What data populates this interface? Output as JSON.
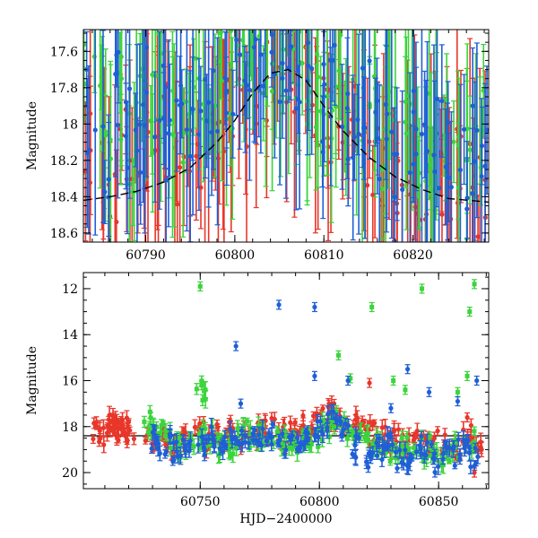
{
  "chart_data": [
    {
      "type": "scatter",
      "title": "",
      "xlabel": "",
      "ylabel": "Magnitude",
      "xlim": [
        60783,
        60828.5
      ],
      "ylim": [
        18.65,
        17.48
      ],
      "y_inverted": true,
      "grid": false,
      "xticks": [
        "60790",
        "60800",
        "60810",
        "60820"
      ],
      "yticks": [
        "17.6",
        "17.8",
        "18",
        "18.2",
        "18.4",
        "18.6"
      ],
      "series": [
        {
          "color": "#e8362a",
          "marker": "circle",
          "errorbars": true,
          "x": [
            60783.6,
            60785.0,
            60786.3,
            60787.4,
            60788.6,
            60789.9,
            60791.2,
            60792.3,
            60793.5,
            60794.8,
            60796.2,
            60797.3,
            60798.6,
            60799.8,
            60801.0,
            60802.3,
            60803.4,
            60804.6,
            60805.8,
            60807.1,
            60808.4,
            60809.5,
            60810.7,
            60811.9,
            60813.2,
            60814.4,
            60815.6,
            60816.8,
            60818.0,
            60819.3,
            60820.5,
            60821.7,
            60822.9,
            60824.1,
            60825.3,
            60826.6,
            60827.8
          ],
          "y": [
            18.05,
            18.25,
            18.35,
            18.1,
            18.3,
            18.15,
            18.2,
            18.05,
            18.25,
            18.15,
            18.1,
            18.0,
            17.95,
            17.9,
            17.85,
            17.8,
            17.75,
            17.72,
            17.7,
            17.72,
            17.78,
            17.85,
            17.95,
            18.0,
            18.05,
            18.1,
            18.15,
            18.2,
            18.22,
            18.25,
            18.28,
            18.3,
            18.32,
            18.3,
            18.28,
            18.32,
            18.35
          ]
        },
        {
          "color": "#3cd43c",
          "marker": "circle",
          "errorbars": true,
          "x": [
            60783.3,
            60784.6,
            60785.8,
            60787.0,
            60788.2,
            60789.5,
            60790.7,
            60791.9,
            60793.1,
            60794.4,
            60795.6,
            60796.9,
            60798.1,
            60799.3,
            60800.6,
            60801.8,
            60803.0,
            60804.2,
            60805.5,
            60806.7,
            60807.9,
            60809.2,
            60810.4,
            60811.6,
            60812.8,
            60814.1,
            60815.3,
            60816.5,
            60817.7,
            60819.0,
            60820.2,
            60821.4,
            60822.6,
            60823.9,
            60825.1,
            60826.3,
            60827.5
          ],
          "y": [
            17.8,
            17.9,
            18.1,
            17.85,
            18.2,
            17.95,
            18.0,
            17.7,
            17.85,
            18.05,
            17.9,
            17.8,
            17.7,
            17.75,
            17.65,
            17.6,
            17.65,
            17.55,
            17.6,
            17.7,
            17.75,
            17.8,
            17.85,
            17.75,
            18.0,
            17.9,
            17.95,
            18.1,
            18.05,
            18.0,
            18.15,
            18.1,
            18.2,
            18.05,
            18.25,
            18.15,
            18.0
          ]
        },
        {
          "color": "#1f5fd6",
          "marker": "circle",
          "errorbars": true,
          "x": [
            60783.9,
            60785.3,
            60786.6,
            60787.7,
            60788.9,
            60790.2,
            60791.5,
            60792.6,
            60793.8,
            60795.1,
            60796.5,
            60797.6,
            60798.9,
            60800.1,
            60801.3,
            60802.6,
            60803.7,
            60804.9,
            60806.1,
            60807.4,
            60808.7,
            60809.8,
            60811.0,
            60812.2,
            60813.5,
            60814.7,
            60815.9,
            60817.1,
            60818.3,
            60819.6,
            60820.8,
            60822.0,
            60823.2,
            60824.4,
            60825.6,
            60826.9,
            60828.1
          ],
          "y": [
            17.95,
            18.15,
            17.85,
            18.0,
            18.1,
            17.75,
            17.9,
            18.05,
            17.8,
            17.95,
            18.0,
            17.85,
            17.8,
            17.7,
            17.75,
            17.65,
            17.6,
            17.7,
            17.62,
            17.68,
            17.75,
            17.9,
            17.8,
            17.95,
            18.05,
            17.9,
            18.1,
            18.0,
            18.2,
            18.05,
            18.15,
            18.25,
            18.1,
            18.2,
            18.3,
            18.15,
            18.25
          ]
        }
      ],
      "model_curve": {
        "style": "dashed",
        "color": "#000000",
        "x": [
          60783,
          60786,
          60789,
          60792,
          60795,
          60798,
          60800,
          60802,
          60804,
          60806,
          60808,
          60810,
          60812,
          60815,
          60818,
          60821,
          60824,
          60828.5
        ],
        "y": [
          18.42,
          18.4,
          18.37,
          18.32,
          18.24,
          18.1,
          17.98,
          17.83,
          17.72,
          17.7,
          17.76,
          17.9,
          18.03,
          18.18,
          18.29,
          18.36,
          18.41,
          18.43
        ]
      }
    },
    {
      "type": "scatter",
      "title": "",
      "xlabel": "HJD−2400000",
      "ylabel": "Magnitude",
      "xlim": [
        60701,
        60871
      ],
      "ylim": [
        20.7,
        11.3
      ],
      "y_inverted": true,
      "grid": false,
      "xticks": [
        "60750",
        "60800",
        "60850"
      ],
      "yticks": [
        "12",
        "14",
        "16",
        "18",
        "20"
      ],
      "reference_line": {
        "y": 18.4,
        "color": "#000000",
        "style": "solid"
      },
      "series": [
        {
          "color": "#e8362a",
          "marker": "circle",
          "errorbars": true,
          "x": [
            60707,
            60710,
            60712,
            60714,
            60716,
            60718,
            60720,
            60729,
            60734,
            60739,
            60744,
            60749,
            60754,
            60759,
            60764,
            60769,
            60774,
            60779,
            60784,
            60789,
            60794,
            60799,
            60803,
            60806,
            60809,
            60813,
            60817,
            60822,
            60827,
            60832,
            60837,
            60842,
            60847,
            60852,
            60857,
            60862,
            60866
          ],
          "y": [
            18.2,
            18.4,
            18.0,
            18.2,
            17.9,
            18.1,
            18.3,
            18.6,
            18.4,
            18.8,
            18.5,
            18.3,
            18.7,
            18.4,
            18.2,
            18.5,
            18.3,
            18.1,
            18.4,
            18.2,
            18.0,
            17.8,
            17.6,
            17.5,
            17.7,
            17.9,
            18.0,
            18.3,
            18.5,
            18.6,
            18.7,
            18.5,
            18.8,
            18.6,
            18.9,
            18.4,
            18.7
          ],
          "outliers": {
            "x": [
              60821,
              60862,
              60865
            ],
            "y": [
              16.1,
              17.6,
              20.0
            ]
          }
        },
        {
          "color": "#3cd43c",
          "marker": "square",
          "errorbars": true,
          "x": [
            60728,
            60733,
            60738,
            60743,
            60748,
            60750,
            60753,
            60758,
            60763,
            60768,
            60773,
            60778,
            60783,
            60788,
            60793,
            60798,
            60803,
            60808,
            60813,
            60818,
            60823,
            60828,
            60833,
            60838,
            60843,
            60848,
            60853,
            60858,
            60863
          ],
          "y": [
            17.8,
            18.3,
            18.6,
            19.0,
            18.7,
            16.4,
            18.5,
            18.8,
            18.9,
            18.2,
            18.4,
            18.3,
            18.6,
            18.5,
            18.7,
            18.4,
            18.1,
            17.7,
            18.2,
            18.6,
            18.8,
            19.1,
            18.9,
            18.7,
            19.0,
            18.8,
            19.2,
            19.0,
            18.6
          ],
          "outliers": {
            "x": [
              60750,
              60822,
              60843,
              60863,
              60865,
              60808,
              60813,
              60831,
              60836,
              60858,
              60862
            ],
            "y": [
              11.9,
              12.8,
              12.0,
              13.0,
              11.8,
              14.9,
              15.9,
              16.0,
              16.4,
              16.5,
              15.8
            ]
          }
        },
        {
          "color": "#1f5fd6",
          "marker": "circle",
          "errorbars": true,
          "x": [
            60730,
            60735,
            60740,
            60745,
            60750,
            60755,
            60760,
            60765,
            60770,
            60775,
            60780,
            60785,
            60790,
            60795,
            60800,
            60805,
            60810,
            60815,
            60820,
            60825,
            60830,
            60835,
            60840,
            60845,
            60850,
            60855,
            60860,
            60865
          ],
          "y": [
            18.5,
            18.8,
            19.0,
            18.6,
            18.9,
            18.4,
            18.7,
            18.5,
            18.8,
            18.6,
            18.4,
            18.7,
            18.5,
            18.3,
            18.2,
            17.8,
            18.1,
            18.9,
            19.3,
            19.0,
            18.7,
            19.4,
            19.1,
            18.8,
            19.6,
            19.2,
            18.9,
            19.3
          ],
          "outliers": {
            "x": [
              60765,
              60783,
              60798,
              60798,
              60812,
              60837,
              60846,
              60866,
              60767,
              60830,
              60858
            ],
            "y": [
              14.5,
              12.7,
              12.8,
              15.8,
              16.0,
              15.5,
              16.5,
              16.0,
              17.0,
              17.2,
              16.9
            ]
          }
        }
      ]
    }
  ]
}
